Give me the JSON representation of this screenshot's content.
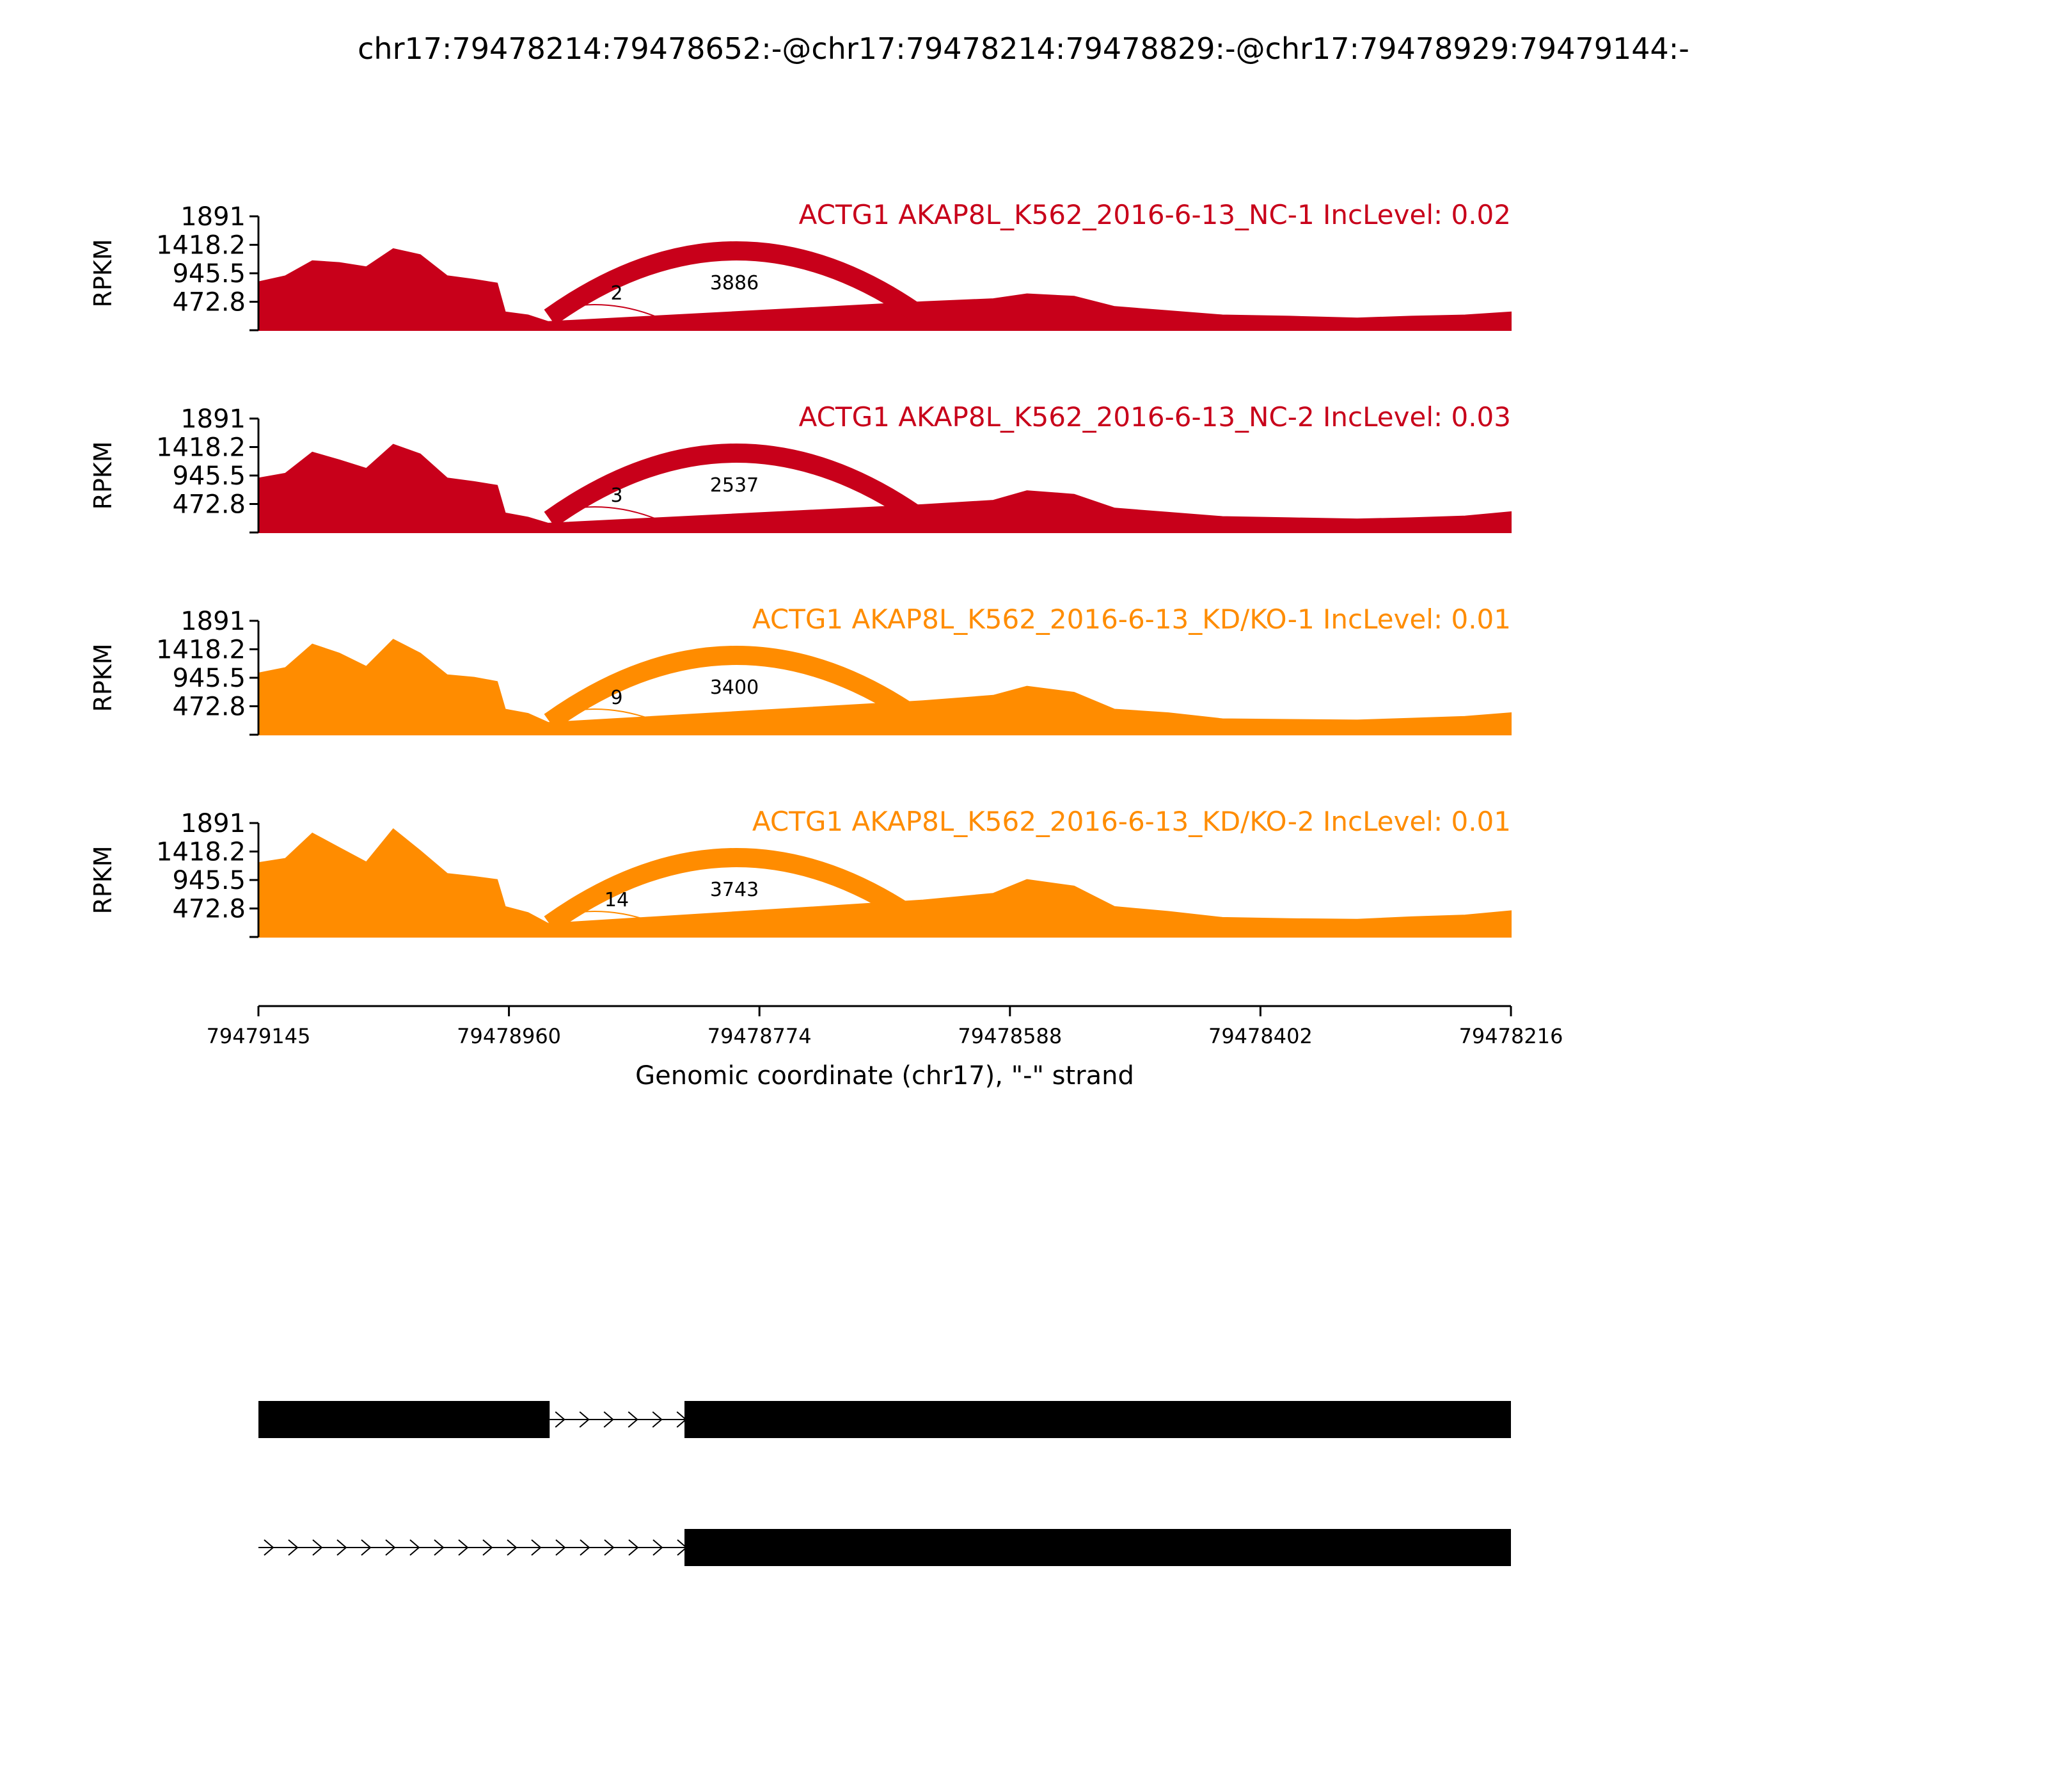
{
  "chart_data": {
    "type": "area",
    "title": "chr17:79478214:79478652:-@chr17:79478214:79478829:-@chr17:79478929:79479144:-",
    "ylabel": "RPKM",
    "xlabel": "Genomic coordinate (chr17), \"-\" strand",
    "x_range": [
      79479145,
      79478216
    ],
    "x_ticks": [
      "79479145",
      "79478960",
      "79478774",
      "79478588",
      "79478402",
      "79478216"
    ],
    "ylim": [
      0,
      1891
    ],
    "y_ticks": [
      "1891",
      "1418.2",
      "945.5",
      "472.8"
    ],
    "colors": {
      "NC": "#c8001a",
      "KD": "#ff8c00"
    },
    "series": [
      {
        "name": "ACTG1 AKAP8L_K562_2016-6-13_NC-1 IncLevel: 0.02",
        "group": "NC",
        "junctions": [
          {
            "from": 79478929,
            "to": 79478829,
            "count": "2"
          },
          {
            "from": 79478929,
            "to": 79478652,
            "count": "3886"
          }
        ],
        "coverage": [
          [
            79479145,
            800
          ],
          [
            79479125,
            900
          ],
          [
            79479105,
            1150
          ],
          [
            79479085,
            1120
          ],
          [
            79479065,
            1050
          ],
          [
            79479045,
            1350
          ],
          [
            79479025,
            1250
          ],
          [
            79479005,
            900
          ],
          [
            79478985,
            840
          ],
          [
            79478968,
            780
          ],
          [
            79478962,
            300
          ],
          [
            79478945,
            250
          ],
          [
            79478930,
            140
          ],
          [
            79478652,
            470
          ],
          [
            79478600,
            520
          ],
          [
            79478575,
            600
          ],
          [
            79478540,
            560
          ],
          [
            79478510,
            390
          ],
          [
            79478470,
            320
          ],
          [
            79478430,
            250
          ],
          [
            79478380,
            230
          ],
          [
            79478330,
            200
          ],
          [
            79478290,
            230
          ],
          [
            79478250,
            250
          ],
          [
            79478216,
            300
          ]
        ]
      },
      {
        "name": "ACTG1 AKAP8L_K562_2016-6-13_NC-2 IncLevel: 0.03",
        "group": "NC",
        "junctions": [
          {
            "from": 79478929,
            "to": 79478829,
            "count": "3"
          },
          {
            "from": 79478929,
            "to": 79478652,
            "count": "2537"
          }
        ],
        "coverage": [
          [
            79479145,
            900
          ],
          [
            79479125,
            980
          ],
          [
            79479105,
            1330
          ],
          [
            79479085,
            1200
          ],
          [
            79479065,
            1060
          ],
          [
            79479045,
            1460
          ],
          [
            79479025,
            1300
          ],
          [
            79479005,
            900
          ],
          [
            79478985,
            840
          ],
          [
            79478968,
            780
          ],
          [
            79478962,
            320
          ],
          [
            79478945,
            250
          ],
          [
            79478930,
            150
          ],
          [
            79478652,
            460
          ],
          [
            79478600,
            530
          ],
          [
            79478575,
            690
          ],
          [
            79478540,
            630
          ],
          [
            79478510,
            400
          ],
          [
            79478470,
            330
          ],
          [
            79478430,
            260
          ],
          [
            79478380,
            240
          ],
          [
            79478330,
            220
          ],
          [
            79478290,
            240
          ],
          [
            79478250,
            270
          ],
          [
            79478216,
            340
          ]
        ]
      },
      {
        "name": "ACTG1 AKAP8L_K562_2016-6-13_KD/KO-1 IncLevel: 0.01",
        "group": "KD",
        "junctions": [
          {
            "from": 79478929,
            "to": 79478829,
            "count": "9"
          },
          {
            "from": 79478929,
            "to": 79478652,
            "count": "3400"
          }
        ],
        "coverage": [
          [
            79479145,
            1020
          ],
          [
            79479125,
            1110
          ],
          [
            79479105,
            1500
          ],
          [
            79479085,
            1350
          ],
          [
            79479065,
            1130
          ],
          [
            79479045,
            1580
          ],
          [
            79479025,
            1350
          ],
          [
            79479005,
            990
          ],
          [
            79478985,
            950
          ],
          [
            79478968,
            880
          ],
          [
            79478962,
            420
          ],
          [
            79478945,
            350
          ],
          [
            79478930,
            200
          ],
          [
            79478652,
            560
          ],
          [
            79478600,
            650
          ],
          [
            79478575,
            800
          ],
          [
            79478540,
            700
          ],
          [
            79478510,
            420
          ],
          [
            79478470,
            360
          ],
          [
            79478430,
            260
          ],
          [
            79478380,
            250
          ],
          [
            79478330,
            240
          ],
          [
            79478290,
            270
          ],
          [
            79478250,
            300
          ],
          [
            79478216,
            360
          ]
        ]
      },
      {
        "name": "ACTG1 AKAP8L_K562_2016-6-13_KD/KO-2 IncLevel: 0.01",
        "group": "KD",
        "junctions": [
          {
            "from": 79478929,
            "to": 79478829,
            "count": "14"
          },
          {
            "from": 79478929,
            "to": 79478652,
            "count": "3743"
          }
        ],
        "coverage": [
          [
            79479145,
            1230
          ],
          [
            79479125,
            1300
          ],
          [
            79479105,
            1720
          ],
          [
            79479085,
            1480
          ],
          [
            79479065,
            1240
          ],
          [
            79479045,
            1790
          ],
          [
            79479025,
            1430
          ],
          [
            79479005,
            1050
          ],
          [
            79478985,
            1000
          ],
          [
            79478968,
            950
          ],
          [
            79478962,
            500
          ],
          [
            79478945,
            400
          ],
          [
            79478930,
            220
          ],
          [
            79478652,
            610
          ],
          [
            79478600,
            720
          ],
          [
            79478575,
            950
          ],
          [
            79478540,
            840
          ],
          [
            79478510,
            500
          ],
          [
            79478470,
            420
          ],
          [
            79478430,
            320
          ],
          [
            79478380,
            300
          ],
          [
            79478330,
            290
          ],
          [
            79478290,
            330
          ],
          [
            79478250,
            360
          ],
          [
            79478216,
            430
          ]
        ]
      }
    ],
    "isoforms": [
      {
        "exons": [
          [
            79479145,
            79478929
          ],
          [
            79478829,
            79478216
          ]
        ]
      },
      {
        "exons": [
          [
            79478829,
            79478216
          ]
        ]
      }
    ]
  }
}
